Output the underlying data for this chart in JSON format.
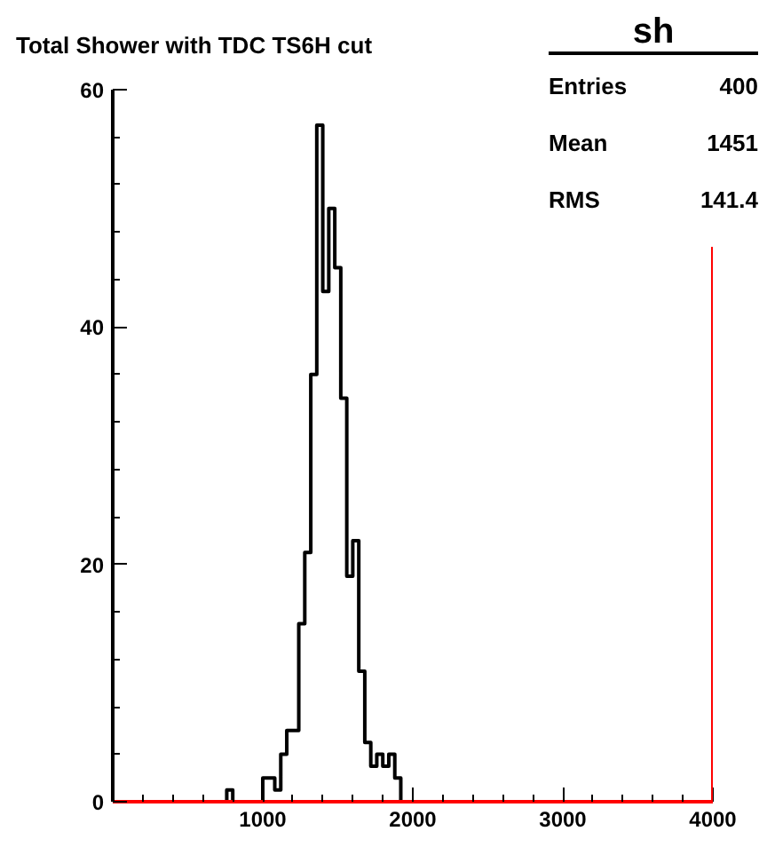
{
  "chart_data": {
    "type": "histogram",
    "title": "Total Shower with TDC TS6H cut",
    "bins": [
      0,
      40,
      80,
      120,
      160,
      200,
      240,
      280,
      320,
      360,
      400,
      440,
      480,
      520,
      560,
      600,
      640,
      680,
      720,
      760,
      800,
      840,
      880,
      920,
      960,
      1000,
      1040,
      1080,
      1120,
      1160,
      1200,
      1240,
      1280,
      1320,
      1360,
      1400,
      1440,
      1480,
      1520,
      1560,
      1600,
      1640,
      1680,
      1720,
      1760,
      1800,
      1840,
      1880,
      1920,
      1960,
      2000,
      2040,
      2080,
      2120,
      2160,
      2200,
      2240,
      2280,
      2320,
      2360,
      2400,
      2440,
      2480,
      2520,
      2560,
      2600,
      2640,
      2680,
      2720,
      2760,
      2800,
      2840,
      2880,
      2920,
      2960,
      3000,
      3040,
      3080,
      3120,
      3160,
      3200,
      3240,
      3280,
      3320,
      3360,
      3400,
      3440,
      3480,
      3520,
      3560,
      3600,
      3640,
      3680,
      3720,
      3760,
      3800,
      3840,
      3880,
      3920,
      3960,
      4000
    ],
    "values": [
      0,
      0,
      0,
      0,
      0,
      0,
      0,
      0,
      0,
      0,
      0,
      0,
      0,
      0,
      0,
      0,
      0,
      0,
      0,
      1,
      0,
      0,
      0,
      0,
      0,
      2,
      2,
      1,
      4,
      6,
      6,
      15,
      21,
      36,
      57,
      43,
      50,
      45,
      34,
      19,
      22,
      11,
      5,
      3,
      4,
      3,
      4,
      2,
      0,
      0,
      0,
      0,
      0,
      0,
      0,
      0,
      0,
      0,
      0,
      0,
      0,
      0,
      0,
      0,
      0,
      0,
      0,
      0,
      0,
      0,
      0,
      0,
      0,
      0,
      0,
      0,
      0,
      0,
      0,
      0,
      0,
      0,
      0,
      0,
      0,
      0,
      0,
      0,
      0,
      0,
      0,
      0,
      0,
      0,
      0,
      0,
      0,
      0,
      0,
      0
    ],
    "color": "#000000",
    "xlim": [
      0,
      4000
    ],
    "xticks": [
      1000,
      2000,
      3000,
      4000
    ],
    "ylim": [
      0,
      60
    ],
    "yticks": [
      0,
      20,
      40,
      60
    ],
    "grid": false,
    "annotations": [
      "sh",
      "Entries 400",
      "Mean 1451",
      "RMS 141.4"
    ]
  }
}
